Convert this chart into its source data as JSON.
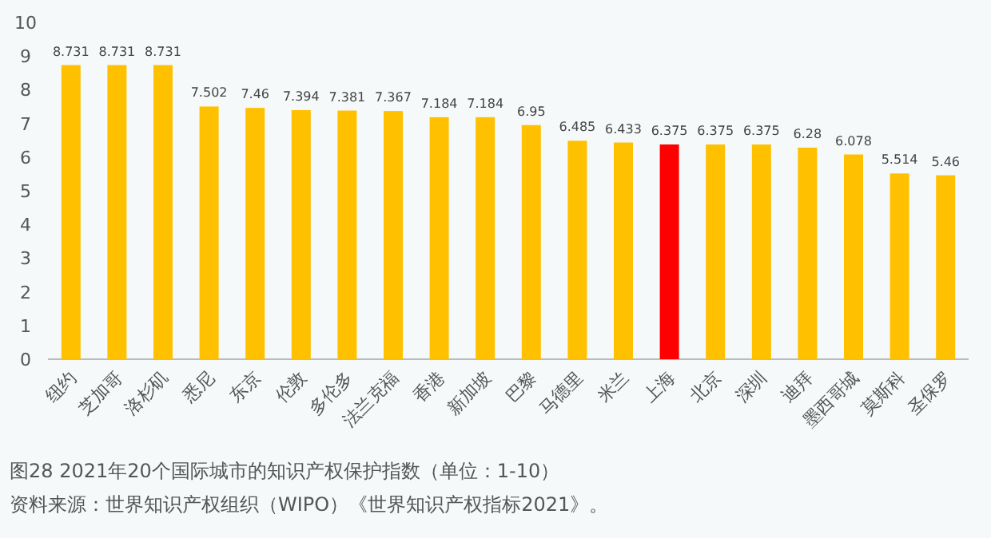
{
  "chart_data": {
    "type": "bar",
    "title": "图28  2021年20个国际城市的知识产权保护指数（单位：1-10）",
    "annotations": [
      "资料来源：世界知识产权组织（WIPO）《世界知识产权指标2021》。"
    ],
    "categories": [
      "纽约",
      "芝加哥",
      "洛杉矶",
      "悉尼",
      "东京",
      "伦敦",
      "多伦多",
      "法兰克福",
      "香港",
      "新加坡",
      "巴黎",
      "马德里",
      "米兰",
      "上海",
      "北京",
      "深圳",
      "迪拜",
      "墨西哥城",
      "莫斯科",
      "圣保罗"
    ],
    "values": [
      8.731,
      8.731,
      8.731,
      7.502,
      7.46,
      7.394,
      7.381,
      7.367,
      7.184,
      7.184,
      6.95,
      6.485,
      6.433,
      6.375,
      6.375,
      6.375,
      6.28,
      6.078,
      5.514,
      5.46
    ],
    "colors": [
      "#ffc000",
      "#ffc000",
      "#ffc000",
      "#ffc000",
      "#ffc000",
      "#ffc000",
      "#ffc000",
      "#ffc000",
      "#ffc000",
      "#ffc000",
      "#ffc000",
      "#ffc000",
      "#ffc000",
      "#ff0000",
      "#ffc000",
      "#ffc000",
      "#ffc000",
      "#ffc000",
      "#ffc000",
      "#ffc000"
    ],
    "ylim": [
      0,
      10
    ],
    "yticks": [
      0,
      1,
      2,
      3,
      4,
      5,
      6,
      7,
      8,
      9,
      10
    ],
    "data_labels": true
  }
}
